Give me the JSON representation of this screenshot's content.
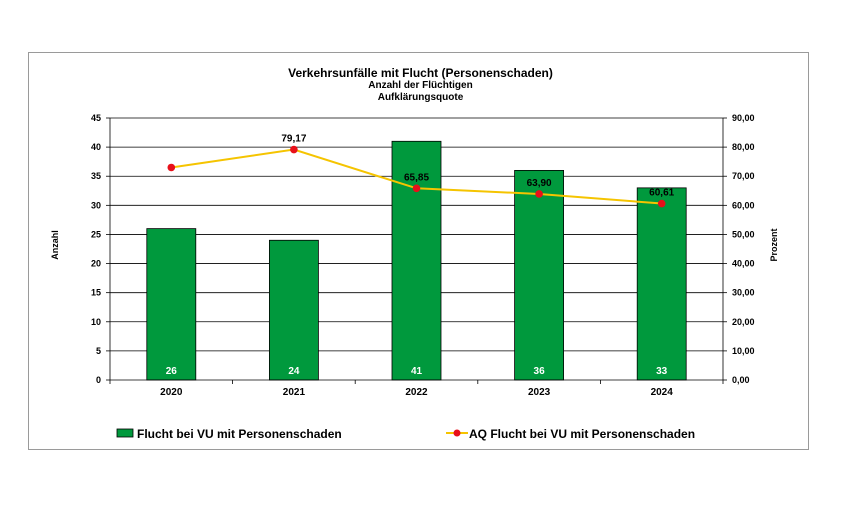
{
  "chart_data": {
    "type": "bar+line",
    "title": "Verkehrsunfälle  mit Flucht (Personenschaden)",
    "subtitle1": "Anzahl der Flüchtigen",
    "subtitle2": "Aufklärungsquote",
    "categories": [
      "2020",
      "2021",
      "2022",
      "2023",
      "2024"
    ],
    "bar_series": {
      "name": "Flucht bei VU mit Personenschaden",
      "values": [
        26,
        24,
        41,
        36,
        33
      ],
      "color": "#00993d",
      "label_color": "#ffffff"
    },
    "line_series": {
      "name": "AQ Flucht bei VU mit Personenschaden",
      "values": [
        73.0,
        79.17,
        65.85,
        63.9,
        60.61
      ],
      "labels": [
        "",
        "79,17",
        "65,85",
        "63,90",
        "60,61"
      ],
      "line_color": "#f5c400",
      "marker_color": "#e8101a"
    },
    "y_left": {
      "label": "Anzahl",
      "min": 0,
      "max": 45,
      "step": 5,
      "tick_labels": [
        "0",
        "5",
        "10",
        "15",
        "20",
        "25",
        "30",
        "35",
        "40",
        "45"
      ]
    },
    "y_right": {
      "label": "Prozent",
      "min": 0,
      "max": 90,
      "step": 10,
      "tick_labels": [
        "0,00",
        "10,00",
        "20,00",
        "30,00",
        "40,00",
        "50,00",
        "60,00",
        "70,00",
        "80,00",
        "90,00"
      ]
    },
    "grid": true,
    "legend_position": "bottom"
  }
}
